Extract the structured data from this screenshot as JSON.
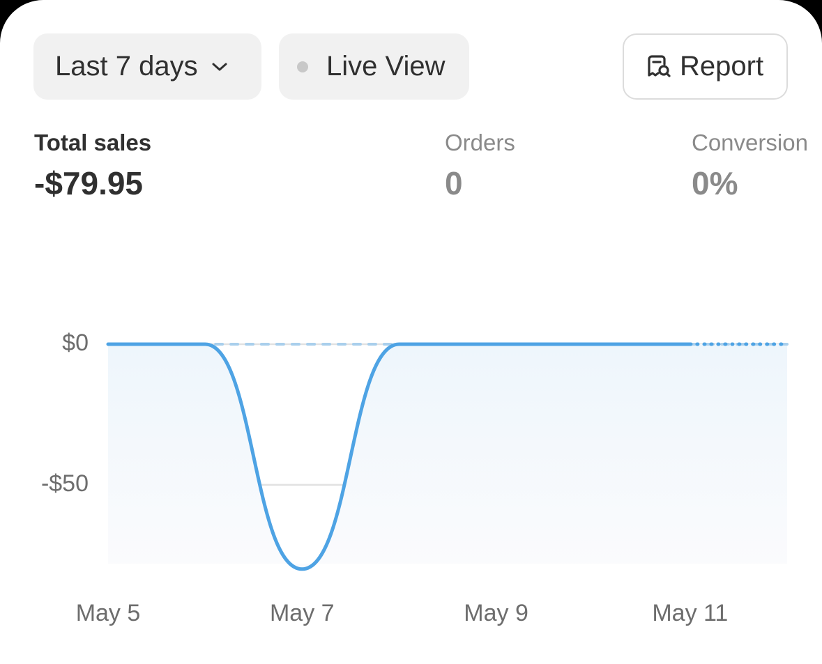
{
  "header": {
    "range": "Last 7 days",
    "live": "Live View",
    "report": "Report"
  },
  "metrics": [
    {
      "label": "Total sales",
      "value": "-$79.95"
    },
    {
      "label": "Orders",
      "value": "0"
    },
    {
      "label": "Conversion",
      "value": "0%"
    }
  ],
  "chart_data": {
    "type": "line",
    "categories": [
      "May 5",
      null,
      "May 7",
      null,
      "May 9",
      null,
      "May 11",
      null
    ],
    "series": [
      {
        "color": "#4ea3e4",
        "values": [
          0,
          0,
          -79.95,
          0,
          0,
          0,
          0,
          0
        ],
        "last_segment_dotted": true,
        "area": true
      },
      {
        "color": "#a9cfec",
        "dashed": true,
        "values": [
          0,
          0,
          0,
          0,
          0,
          0,
          0,
          0
        ]
      }
    ],
    "ylim": [
      -80,
      0
    ],
    "yticks": [
      {
        "value": 0,
        "label": "$0"
      },
      {
        "value": -50,
        "label": "-$50"
      }
    ],
    "grid": true
  }
}
